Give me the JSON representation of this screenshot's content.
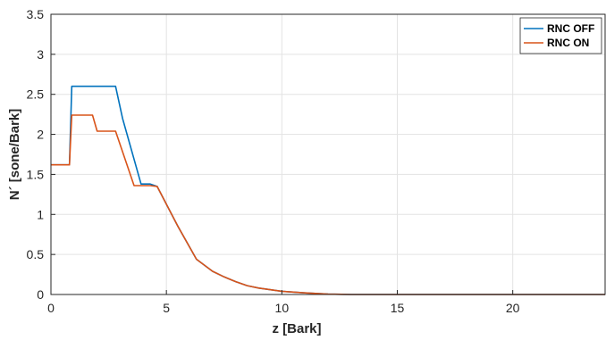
{
  "chart_data": {
    "type": "line",
    "xlabel": "z [Bark]",
    "ylabel": "N´ [sone/Bark]",
    "xlim": [
      0,
      24
    ],
    "ylim": [
      0,
      3.5
    ],
    "xticks": [
      0,
      5,
      10,
      15,
      20
    ],
    "yticks": [
      0,
      0.5,
      1,
      1.5,
      2,
      2.5,
      3,
      3.5
    ],
    "xtick_labels": [
      "0",
      "5",
      "10",
      "15",
      "20"
    ],
    "ytick_labels": [
      "0",
      "0.5",
      "1",
      "1.5",
      "2",
      "2.5",
      "3",
      "3.5"
    ],
    "grid": true,
    "legend_position": "top-right",
    "series": [
      {
        "name": "RNC OFF",
        "color": "#0072BD",
        "x": [
          0,
          0.8,
          0.9,
          1.8,
          2.8,
          3.1,
          3.9,
          4.3,
          4.6,
          5.5,
          6.3,
          7.0,
          7.5,
          8.0,
          8.5,
          9.0,
          10.0,
          11.0,
          12.0,
          13.0,
          15.0,
          20.0,
          24.0
        ],
        "y": [
          1.62,
          1.62,
          2.6,
          2.6,
          2.6,
          2.2,
          1.38,
          1.38,
          1.35,
          0.85,
          0.44,
          0.29,
          0.22,
          0.16,
          0.11,
          0.08,
          0.04,
          0.02,
          0.005,
          0.0,
          0.0,
          0.0,
          0.0
        ]
      },
      {
        "name": "RNC ON",
        "color": "#D95319",
        "x": [
          0,
          0.8,
          0.9,
          1.8,
          2.0,
          2.8,
          3.6,
          4.3,
          4.6,
          5.5,
          6.3,
          7.0,
          7.5,
          8.0,
          8.5,
          9.0,
          10.0,
          11.0,
          12.0,
          13.0,
          15.0,
          20.0,
          24.0
        ],
        "y": [
          1.62,
          1.62,
          2.24,
          2.24,
          2.04,
          2.04,
          1.36,
          1.36,
          1.35,
          0.85,
          0.44,
          0.29,
          0.22,
          0.16,
          0.11,
          0.08,
          0.04,
          0.02,
          0.005,
          0.0,
          0.0,
          0.0,
          0.0
        ]
      }
    ]
  }
}
